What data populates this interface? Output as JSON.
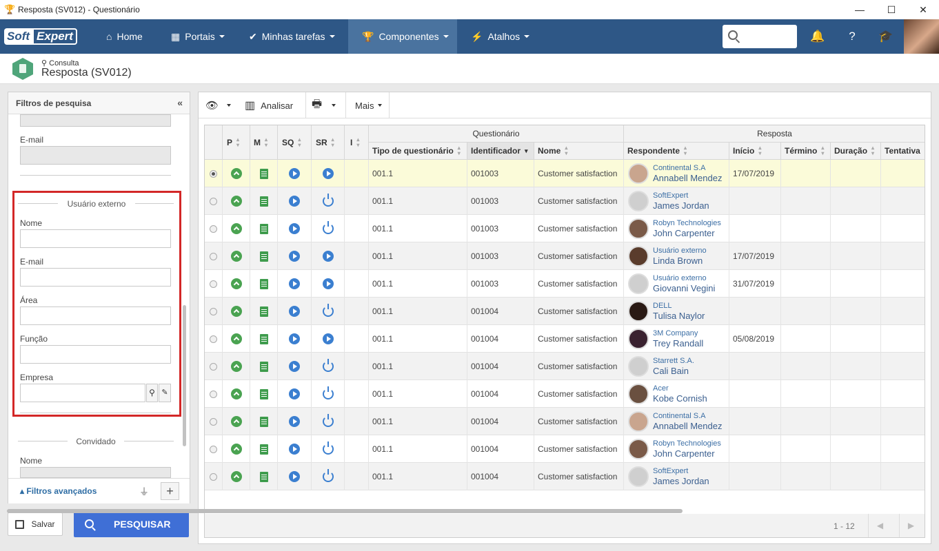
{
  "window": {
    "title": "Resposta (SV012) - Questionário"
  },
  "nav": {
    "logo_left": "Soft",
    "logo_right": "Expert",
    "items": [
      {
        "label": "Home",
        "icon": "home-icon"
      },
      {
        "label": "Portais",
        "icon": "grid-icon"
      },
      {
        "label": "Minhas tarefas",
        "icon": "check-icon"
      },
      {
        "label": "Componentes",
        "icon": "trophy-icon"
      },
      {
        "label": "Atalhos",
        "icon": "bolt-icon"
      }
    ]
  },
  "page": {
    "breadcrumb": "Consulta",
    "title": "Resposta (SV012)"
  },
  "filters": {
    "title": "Filtros de pesquisa",
    "email_label": "E-mail",
    "section_external": "Usuário externo",
    "nome_label": "Nome",
    "email2_label": "E-mail",
    "area_label": "Área",
    "funcao_label": "Função",
    "empresa_label": "Empresa",
    "section_guest": "Convidado",
    "nome2_label": "Nome",
    "advanced": "Filtros avançados"
  },
  "buttons": {
    "save": "Salvar",
    "search": "PESQUISAR"
  },
  "toolbar": {
    "analyze": "Analisar",
    "more": "Mais"
  },
  "grid": {
    "group_questionario": "Questionário",
    "group_resposta": "Resposta",
    "col_p": "P",
    "col_m": "M",
    "col_sq": "SQ",
    "col_sr": "SR",
    "col_i": "I",
    "col_tipo": "Tipo de questionário",
    "col_ident": "Identificador",
    "col_nome": "Nome",
    "col_resp": "Respondente",
    "col_inicio": "Início",
    "col_termino": "Término",
    "col_duracao": "Duração",
    "col_tentativa": "Tentativa",
    "rows": [
      {
        "tipo": "001.1",
        "ident": "001003",
        "nome": "Customer satisfaction",
        "org": "Continental S.A",
        "person": "Annabell Mendez",
        "inicio": "17/07/2019"
      },
      {
        "tipo": "001.1",
        "ident": "001003",
        "nome": "Customer satisfaction",
        "org": "SoftExpert",
        "person": "James Jordan",
        "inicio": ""
      },
      {
        "tipo": "001.1",
        "ident": "001003",
        "nome": "Customer satisfaction",
        "org": "Robyn Technologies",
        "person": "John Carpenter",
        "inicio": ""
      },
      {
        "tipo": "001.1",
        "ident": "001003",
        "nome": "Customer satisfaction",
        "org": "Usuário externo",
        "person": "Linda Brown",
        "inicio": "17/07/2019"
      },
      {
        "tipo": "001.1",
        "ident": "001003",
        "nome": "Customer satisfaction",
        "org": "Usuário externo",
        "person": "Giovanni Vegini",
        "inicio": "31/07/2019"
      },
      {
        "tipo": "001.1",
        "ident": "001004",
        "nome": "Customer satisfaction",
        "org": "DELL",
        "person": "Tulisa Naylor",
        "inicio": ""
      },
      {
        "tipo": "001.1",
        "ident": "001004",
        "nome": "Customer satisfaction",
        "org": "3M Company",
        "person": "Trey Randall",
        "inicio": "05/08/2019"
      },
      {
        "tipo": "001.1",
        "ident": "001004",
        "nome": "Customer satisfaction",
        "org": "Starrett S.A.",
        "person": "Cali Bain",
        "inicio": ""
      },
      {
        "tipo": "001.1",
        "ident": "001004",
        "nome": "Customer satisfaction",
        "org": "Acer",
        "person": "Kobe Cornish",
        "inicio": ""
      },
      {
        "tipo": "001.1",
        "ident": "001004",
        "nome": "Customer satisfaction",
        "org": "Continental S.A",
        "person": "Annabell Mendez",
        "inicio": ""
      },
      {
        "tipo": "001.1",
        "ident": "001004",
        "nome": "Customer satisfaction",
        "org": "Robyn Technologies",
        "person": "John Carpenter",
        "inicio": ""
      },
      {
        "tipo": "001.1",
        "ident": "001004",
        "nome": "Customer satisfaction",
        "org": "SoftExpert",
        "person": "James Jordan",
        "inicio": ""
      }
    ],
    "pager": "1 - 12"
  }
}
